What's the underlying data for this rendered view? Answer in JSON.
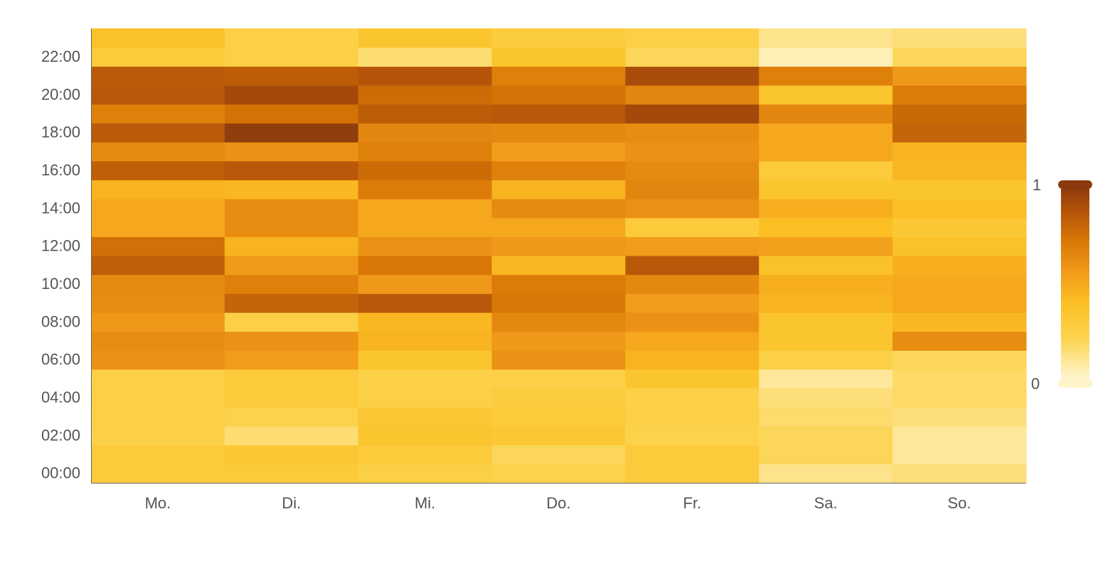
{
  "chart_data": {
    "type": "heatmap",
    "title": "",
    "xlabel": "",
    "ylabel": "",
    "x_categories": [
      "Mo.",
      "Di.",
      "Mi.",
      "Do.",
      "Fr.",
      "Sa.",
      "So."
    ],
    "y_categories": [
      "00:00",
      "01:00",
      "02:00",
      "03:00",
      "04:00",
      "05:00",
      "06:00",
      "07:00",
      "08:00",
      "09:00",
      "10:00",
      "11:00",
      "12:00",
      "13:00",
      "14:00",
      "15:00",
      "16:00",
      "17:00",
      "18:00",
      "19:00",
      "20:00",
      "21:00",
      "22:00",
      "23:00"
    ],
    "y_tick_labels": [
      "00:00",
      "02:00",
      "04:00",
      "06:00",
      "08:00",
      "10:00",
      "12:00",
      "14:00",
      "16:00",
      "18:00",
      "20:00",
      "22:00"
    ],
    "value_range": [
      0,
      1
    ],
    "values": [
      [
        0.3,
        0.3,
        0.25,
        0.23,
        0.3,
        0.12,
        0.15
      ],
      [
        0.3,
        0.33,
        0.3,
        0.2,
        0.3,
        0.2,
        0.1
      ],
      [
        0.24,
        0.16,
        0.35,
        0.33,
        0.23,
        0.2,
        0.1
      ],
      [
        0.25,
        0.23,
        0.33,
        0.3,
        0.25,
        0.17,
        0.15
      ],
      [
        0.26,
        0.3,
        0.25,
        0.28,
        0.24,
        0.15,
        0.18
      ],
      [
        0.25,
        0.3,
        0.24,
        0.25,
        0.35,
        0.1,
        0.18
      ],
      [
        0.6,
        0.55,
        0.35,
        0.6,
        0.45,
        0.25,
        0.2
      ],
      [
        0.62,
        0.6,
        0.45,
        0.57,
        0.5,
        0.35,
        0.62
      ],
      [
        0.57,
        0.25,
        0.43,
        0.64,
        0.6,
        0.35,
        0.43
      ],
      [
        0.62,
        0.8,
        0.85,
        0.72,
        0.55,
        0.45,
        0.5
      ],
      [
        0.63,
        0.68,
        0.57,
        0.7,
        0.64,
        0.47,
        0.5
      ],
      [
        0.82,
        0.56,
        0.72,
        0.43,
        0.85,
        0.38,
        0.47
      ],
      [
        0.75,
        0.45,
        0.6,
        0.57,
        0.55,
        0.53,
        0.38
      ],
      [
        0.5,
        0.62,
        0.5,
        0.5,
        0.3,
        0.4,
        0.33
      ],
      [
        0.5,
        0.62,
        0.5,
        0.63,
        0.6,
        0.47,
        0.4
      ],
      [
        0.45,
        0.43,
        0.7,
        0.45,
        0.65,
        0.35,
        0.35
      ],
      [
        0.82,
        0.85,
        0.77,
        0.68,
        0.63,
        0.3,
        0.43
      ],
      [
        0.63,
        0.6,
        0.68,
        0.55,
        0.6,
        0.5,
        0.45
      ],
      [
        0.84,
        0.98,
        0.65,
        0.64,
        0.62,
        0.5,
        0.8
      ],
      [
        0.68,
        0.74,
        0.83,
        0.85,
        0.92,
        0.65,
        0.78
      ],
      [
        0.85,
        0.92,
        0.77,
        0.74,
        0.65,
        0.35,
        0.7
      ],
      [
        0.84,
        0.83,
        0.86,
        0.68,
        0.9,
        0.68,
        0.57
      ],
      [
        0.3,
        0.26,
        0.16,
        0.35,
        0.2,
        0.05,
        0.2
      ],
      [
        0.38,
        0.25,
        0.35,
        0.28,
        0.25,
        0.12,
        0.15
      ]
    ],
    "grid": false,
    "legend": {
      "type": "colorbar",
      "placement": "right",
      "labels": [
        "1",
        "0"
      ]
    },
    "colorscale": [
      "#FFF7D6",
      "#FCD34D",
      "#FBBF24",
      "#F29C1B",
      "#D97706",
      "#B45309",
      "#8B3A0F"
    ]
  }
}
